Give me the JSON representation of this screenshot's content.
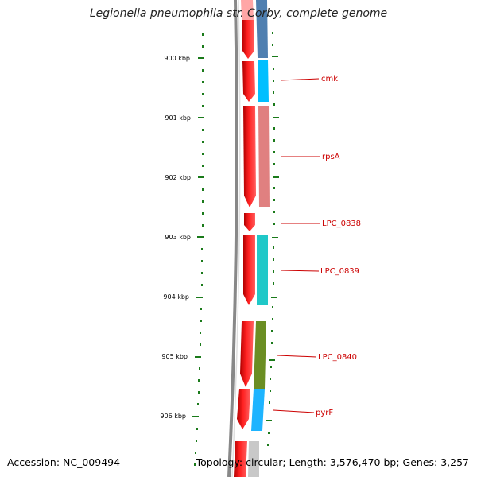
{
  "header": {
    "title": "Legionella pneumophila str. Corby, complete genome"
  },
  "footer": {
    "accession": "Accession: NC_009494",
    "stats": "Topology: circular; Length: 3,576,470 bp; Genes: 3,257"
  },
  "ruler": {
    "ticks": [
      "900 kbp",
      "901 kbp",
      "902 kbp",
      "903 kbp",
      "904 kbp",
      "905 kbp",
      "906 kbp"
    ]
  },
  "genes": [
    {
      "name": "cmk",
      "color": "#00bfff"
    },
    {
      "name": "rpsA",
      "color": "#e08080"
    },
    {
      "name": "LPC_0838",
      "color": ""
    },
    {
      "name": "LPC_0839",
      "color": "#20c8c8"
    },
    {
      "name": "LPC_0840",
      "color": "#6b8e23"
    },
    {
      "name": "pyrF",
      "color": "#1eb4ff"
    }
  ],
  "colors": {
    "cds": "#ff0000",
    "backbone": "#888888",
    "previous_gene": "#4f7fb0",
    "next_gene": "#c8c8c8",
    "tick": "#1a7a1a",
    "label_line": "#cc0000"
  }
}
